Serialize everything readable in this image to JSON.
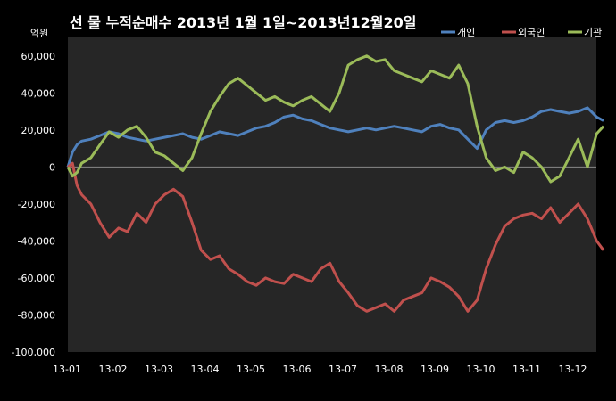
{
  "chart_data": {
    "type": "line",
    "title": "선 물 누적순매수 2013년 1월 1일~2013년12월20일",
    "unit_label": "억원",
    "ylim": [
      -100000,
      70000
    ],
    "y_ticks": [
      -100000,
      -80000,
      -60000,
      -40000,
      -20000,
      0,
      20000,
      40000,
      60000
    ],
    "y_tick_labels": [
      "-100,000",
      "-80,000",
      "-60,000",
      "-40,000",
      "-20,000",
      "0",
      "20,000",
      "40,000",
      "60,000"
    ],
    "x_tick_labels": [
      "13-01",
      "13-02",
      "13-03",
      "13-04",
      "13-05",
      "13-06",
      "13-07",
      "13-08",
      "13-09",
      "13-10",
      "13-11",
      "13-12"
    ],
    "x_range": [
      0,
      11.65
    ],
    "grid": false,
    "legend": "top-right",
    "colors": {
      "background": "#000000",
      "plot_bg": "#262626",
      "text": "#ffffff"
    },
    "series": [
      {
        "name": "개인",
        "color": "#4f81bd",
        "x": [
          0,
          0.1,
          0.2,
          0.3,
          0.5,
          0.7,
          0.9,
          1.1,
          1.3,
          1.5,
          1.7,
          1.9,
          2.1,
          2.3,
          2.5,
          2.7,
          2.9,
          3.1,
          3.3,
          3.5,
          3.7,
          3.9,
          4.1,
          4.3,
          4.5,
          4.7,
          4.9,
          5.1,
          5.3,
          5.5,
          5.7,
          5.9,
          6.1,
          6.3,
          6.5,
          6.7,
          6.9,
          7.1,
          7.3,
          7.5,
          7.7,
          7.9,
          8.1,
          8.3,
          8.5,
          8.7,
          8.9,
          9.1,
          9.3,
          9.5,
          9.7,
          9.9,
          10.1,
          10.3,
          10.5,
          10.7,
          10.9,
          11.1,
          11.3,
          11.5,
          11.65
        ],
        "values": [
          0,
          8000,
          12000,
          14000,
          15000,
          17000,
          19000,
          18000,
          16000,
          15000,
          14000,
          15000,
          16000,
          17000,
          18000,
          16000,
          15000,
          17000,
          19000,
          18000,
          17000,
          19000,
          21000,
          22000,
          24000,
          27000,
          28000,
          26000,
          25000,
          23000,
          21000,
          20000,
          19000,
          20000,
          21000,
          20000,
          21000,
          22000,
          21000,
          20000,
          19000,
          22000,
          23000,
          21000,
          20000,
          15000,
          10000,
          20000,
          24000,
          25000,
          24000,
          25000,
          27000,
          30000,
          31000,
          30000,
          29000,
          30000,
          32000,
          27000,
          25000
        ]
      },
      {
        "name": "외국인",
        "color": "#c0504d",
        "x": [
          0,
          0.1,
          0.2,
          0.3,
          0.5,
          0.7,
          0.9,
          1.1,
          1.3,
          1.5,
          1.7,
          1.9,
          2.1,
          2.3,
          2.5,
          2.7,
          2.9,
          3.1,
          3.3,
          3.5,
          3.7,
          3.9,
          4.1,
          4.3,
          4.5,
          4.7,
          4.9,
          5.1,
          5.3,
          5.5,
          5.7,
          5.9,
          6.1,
          6.3,
          6.5,
          6.7,
          6.9,
          7.1,
          7.3,
          7.5,
          7.7,
          7.9,
          8.1,
          8.3,
          8.5,
          8.7,
          8.9,
          9.1,
          9.3,
          9.5,
          9.7,
          9.9,
          10.1,
          10.3,
          10.5,
          10.7,
          10.9,
          11.1,
          11.3,
          11.5,
          11.65
        ],
        "values": [
          0,
          2000,
          -10000,
          -15000,
          -20000,
          -30000,
          -38000,
          -33000,
          -35000,
          -25000,
          -30000,
          -20000,
          -15000,
          -12000,
          -16000,
          -30000,
          -45000,
          -50000,
          -48000,
          -55000,
          -58000,
          -62000,
          -64000,
          -60000,
          -62000,
          -63000,
          -58000,
          -60000,
          -62000,
          -55000,
          -52000,
          -62000,
          -68000,
          -75000,
          -78000,
          -76000,
          -74000,
          -78000,
          -72000,
          -70000,
          -68000,
          -60000,
          -62000,
          -65000,
          -70000,
          -78000,
          -72000,
          -55000,
          -42000,
          -32000,
          -28000,
          -26000,
          -25000,
          -28000,
          -22000,
          -30000,
          -25000,
          -20000,
          -28000,
          -40000,
          -45000
        ]
      },
      {
        "name": "기관",
        "color": "#9bbb59",
        "x": [
          0,
          0.1,
          0.2,
          0.3,
          0.5,
          0.7,
          0.9,
          1.1,
          1.3,
          1.5,
          1.7,
          1.9,
          2.1,
          2.3,
          2.5,
          2.7,
          2.9,
          3.1,
          3.3,
          3.5,
          3.7,
          3.9,
          4.1,
          4.3,
          4.5,
          4.7,
          4.9,
          5.1,
          5.3,
          5.5,
          5.7,
          5.9,
          6.1,
          6.3,
          6.5,
          6.7,
          6.9,
          7.1,
          7.3,
          7.5,
          7.7,
          7.9,
          8.1,
          8.3,
          8.5,
          8.7,
          8.9,
          9.1,
          9.3,
          9.5,
          9.7,
          9.9,
          10.1,
          10.3,
          10.5,
          10.7,
          10.9,
          11.1,
          11.3,
          11.5,
          11.65
        ],
        "values": [
          0,
          -5000,
          -3000,
          2000,
          5000,
          12000,
          19000,
          16000,
          20000,
          22000,
          16000,
          8000,
          6000,
          2000,
          -2000,
          5000,
          18000,
          30000,
          38000,
          45000,
          48000,
          44000,
          40000,
          36000,
          38000,
          35000,
          33000,
          36000,
          38000,
          34000,
          30000,
          40000,
          55000,
          58000,
          60000,
          57000,
          58000,
          52000,
          50000,
          48000,
          46000,
          52000,
          50000,
          48000,
          55000,
          45000,
          22000,
          5000,
          -2000,
          0,
          -3000,
          8000,
          5000,
          0,
          -8000,
          -5000,
          5000,
          15000,
          0,
          18000,
          22000
        ]
      }
    ]
  }
}
